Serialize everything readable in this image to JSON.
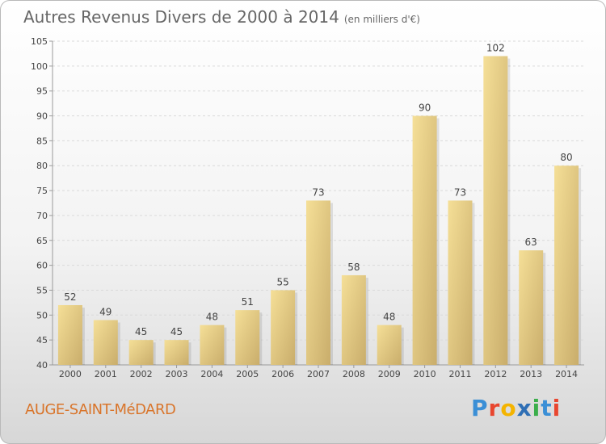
{
  "header": {
    "title": "Autres Revenus Divers de 2000 à 2014",
    "subtitle": "(en milliers d'€)"
  },
  "footer": {
    "place": "AUGE-SAINT-MéDARD",
    "logo": [
      "P",
      "r",
      "o",
      "x",
      "i",
      "t",
      "i"
    ],
    "logo_colors": [
      "#3b8fd6",
      "#e8462f",
      "#f4b400",
      "#2f6fb5",
      "#3bae4b",
      "#3b8fd6",
      "#e8462f"
    ]
  },
  "colors": {
    "bar_light": "#f5df97",
    "bar_dark": "#c9ad6b",
    "grid": "#d9d9d9",
    "axis": "#9a9a9a",
    "title": "#666666",
    "place": "#d9752b"
  },
  "chart_data": {
    "type": "bar",
    "title": "Autres Revenus Divers de 2000 à 2014",
    "subtitle": "(en milliers d'€)",
    "categories": [
      "2000",
      "2001",
      "2002",
      "2003",
      "2004",
      "2005",
      "2006",
      "2007",
      "2008",
      "2009",
      "2010",
      "2011",
      "2012",
      "2013",
      "2014"
    ],
    "values": [
      52,
      49,
      45,
      45,
      48,
      51,
      55,
      73,
      58,
      48,
      90,
      73,
      102,
      63,
      80
    ],
    "ylim": [
      40,
      105
    ],
    "yticks": [
      40,
      45,
      50,
      55,
      60,
      65,
      70,
      75,
      80,
      85,
      90,
      95,
      100,
      105
    ],
    "grid": true,
    "legend": "none"
  }
}
